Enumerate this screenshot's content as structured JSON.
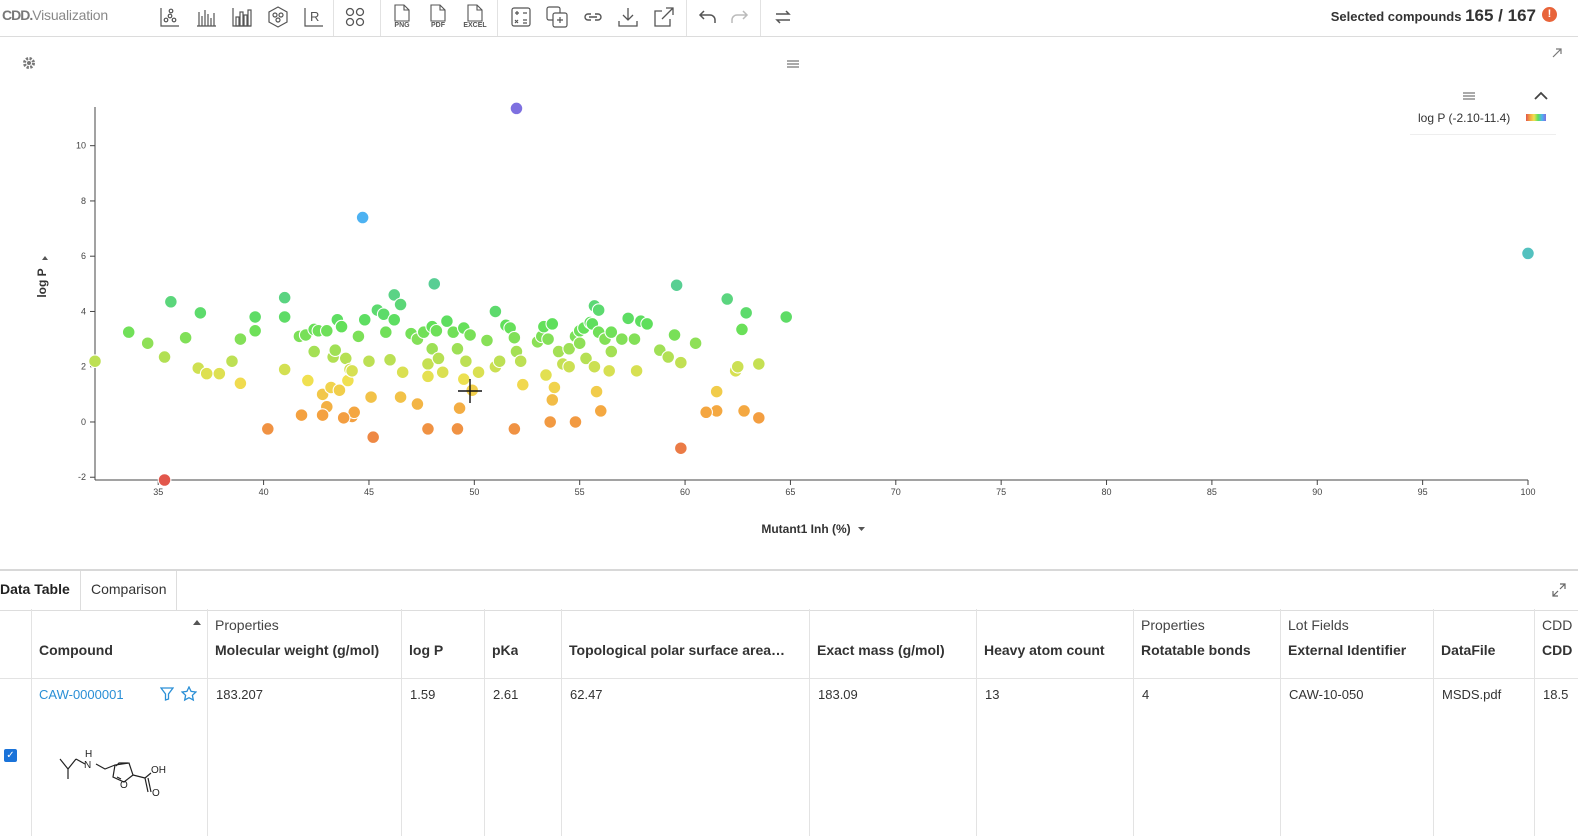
{
  "app": {
    "logo_mark": "CDD.",
    "logo_text": "Visualization",
    "selected_label": "Selected compounds",
    "selected_count": "165 / 167",
    "alert_symbol": "!"
  },
  "toolbar": {
    "export": [
      {
        "label": "PNG",
        "icon": "file-png-icon"
      },
      {
        "label": "PDF",
        "icon": "file-pdf-icon"
      },
      {
        "label": "EXCEL",
        "icon": "file-excel-icon"
      }
    ],
    "icons": [
      "scatter-plot-icon",
      "bar-chart-icon",
      "histogram-icon",
      "molecule-view-icon",
      "r-script-icon",
      "cluster-icon",
      "calculator-icon",
      "add-copy-icon",
      "link-icon",
      "download-icon",
      "external-open-icon",
      "undo-icon",
      "redo-icon",
      "refresh-icon"
    ]
  },
  "plot": {
    "legend_label": "log P (-2.10-11.4)",
    "legend_colors": [
      "#e2574c",
      "#f4a340",
      "#f0e050",
      "#5fe05a",
      "#4db2f2",
      "#7f6fe0"
    ]
  },
  "chart_data": {
    "type": "scatter",
    "xlabel": "Mutant1 Inh (%)",
    "ylabel": "log P",
    "xlim": [
      32,
      100
    ],
    "ylim": [
      -2.1,
      11.4
    ],
    "xticks": [
      35,
      40,
      45,
      50,
      55,
      60,
      65,
      70,
      75,
      80,
      85,
      90,
      95,
      100
    ],
    "yticks": [
      -2,
      0,
      2,
      4,
      6,
      8,
      10
    ],
    "color_by": "log P",
    "points": [
      [
        32,
        2.2
      ],
      [
        33.6,
        3.25
      ],
      [
        34.5,
        2.85
      ],
      [
        35.3,
        2.35
      ],
      [
        35.6,
        4.35
      ],
      [
        36.3,
        3.05
      ],
      [
        37.0,
        3.95
      ],
      [
        36.9,
        1.95
      ],
      [
        37.3,
        1.75
      ],
      [
        37.9,
        1.75
      ],
      [
        38.5,
        2.2
      ],
      [
        38.9,
        1.4
      ],
      [
        38.9,
        3.0
      ],
      [
        39.6,
        3.3
      ],
      [
        39.6,
        3.8
      ],
      [
        41.0,
        1.9
      ],
      [
        41.0,
        3.8
      ],
      [
        41.0,
        4.5
      ],
      [
        41.7,
        3.1
      ],
      [
        42.0,
        3.15
      ],
      [
        42.4,
        2.55
      ],
      [
        42.4,
        3.35
      ],
      [
        42.6,
        3.3
      ],
      [
        43.0,
        3.3
      ],
      [
        42.8,
        1.0
      ],
      [
        43.2,
        1.25
      ],
      [
        42.1,
        1.5
      ],
      [
        43.3,
        2.35
      ],
      [
        43.4,
        2.6
      ],
      [
        43.5,
        3.7
      ],
      [
        43.7,
        3.45
      ],
      [
        43.9,
        2.3
      ],
      [
        43.6,
        1.15
      ],
      [
        44.0,
        1.5
      ],
      [
        44.1,
        1.9
      ],
      [
        44.2,
        1.85
      ],
      [
        44.5,
        3.1
      ],
      [
        44.8,
        3.7
      ],
      [
        45.0,
        2.2
      ],
      [
        44.2,
        0.2
      ],
      [
        44.3,
        0.35
      ],
      [
        45.4,
        4.05
      ],
      [
        45.7,
        3.9
      ],
      [
        45.8,
        3.25
      ],
      [
        46.2,
        4.6
      ],
      [
        46.2,
        3.7
      ],
      [
        46.0,
        2.25
      ],
      [
        46.5,
        4.25
      ],
      [
        46.6,
        1.8
      ],
      [
        47.0,
        3.2
      ],
      [
        47.3,
        3.0
      ],
      [
        47.6,
        3.25
      ],
      [
        47.8,
        2.1
      ],
      [
        48.0,
        2.65
      ],
      [
        48.0,
        3.45
      ],
      [
        47.8,
        1.65
      ],
      [
        48.1,
        5.0
      ],
      [
        48.3,
        2.3
      ],
      [
        48.2,
        3.3
      ],
      [
        48.5,
        1.8
      ],
      [
        48.7,
        3.65
      ],
      [
        49.0,
        3.25
      ],
      [
        49.2,
        2.65
      ],
      [
        49.5,
        3.4
      ],
      [
        49.6,
        2.2
      ],
      [
        49.8,
        3.15
      ],
      [
        49.5,
        1.55
      ],
      [
        49.9,
        1.15
      ],
      [
        50.2,
        1.8
      ],
      [
        50.6,
        2.95
      ],
      [
        51.0,
        4.0
      ],
      [
        51.0,
        2.0
      ],
      [
        51.2,
        2.2
      ],
      [
        51.5,
        3.5
      ],
      [
        51.7,
        3.4
      ],
      [
        51.9,
        3.05
      ],
      [
        52.0,
        2.55
      ],
      [
        52.2,
        2.2
      ],
      [
        52.3,
        1.35
      ],
      [
        53.0,
        2.9
      ],
      [
        53.2,
        3.1
      ],
      [
        53.3,
        3.45
      ],
      [
        53.5,
        3.0
      ],
      [
        53.7,
        3.55
      ],
      [
        53.4,
        1.7
      ],
      [
        53.8,
        1.25
      ],
      [
        53.7,
        0.8
      ],
      [
        54.0,
        2.55
      ],
      [
        54.2,
        2.1
      ],
      [
        54.5,
        2.0
      ],
      [
        54.5,
        2.65
      ],
      [
        54.8,
        3.1
      ],
      [
        55.0,
        3.3
      ],
      [
        55.2,
        3.4
      ],
      [
        55.5,
        3.6
      ],
      [
        55.6,
        3.55
      ],
      [
        55.7,
        4.2
      ],
      [
        55.9,
        4.05
      ],
      [
        55.3,
        2.3
      ],
      [
        55.7,
        2.0
      ],
      [
        55.8,
        1.1
      ],
      [
        55.0,
        2.85
      ],
      [
        55.9,
        3.25
      ],
      [
        56.2,
        3.0
      ],
      [
        56.4,
        1.85
      ],
      [
        56.5,
        2.55
      ],
      [
        56.5,
        3.25
      ],
      [
        57.0,
        3.0
      ],
      [
        57.3,
        3.75
      ],
      [
        57.7,
        1.85
      ],
      [
        57.6,
        3.0
      ],
      [
        57.9,
        3.65
      ],
      [
        58.2,
        3.55
      ],
      [
        58.8,
        2.6
      ],
      [
        59.2,
        2.35
      ],
      [
        59.5,
        3.15
      ],
      [
        59.6,
        4.95
      ],
      [
        59.8,
        2.15
      ],
      [
        60.5,
        2.85
      ],
      [
        61.5,
        1.1
      ],
      [
        62.0,
        4.45
      ],
      [
        62.4,
        1.85
      ],
      [
        62.5,
        2.0
      ],
      [
        62.7,
        3.35
      ],
      [
        62.9,
        3.95
      ],
      [
        63.5,
        2.1
      ],
      [
        64.8,
        3.8
      ],
      [
        61.5,
        0.4
      ],
      [
        62.8,
        0.4
      ],
      [
        56.0,
        0.4
      ],
      [
        54.8,
        0.0
      ],
      [
        53.6,
        0.0
      ],
      [
        51.9,
        -0.25
      ],
      [
        49.2,
        -0.25
      ],
      [
        47.8,
        -0.25
      ],
      [
        40.2,
        -0.25
      ],
      [
        35.3,
        -2.1
      ],
      [
        45.2,
        -0.55
      ],
      [
        44.7,
        7.4
      ],
      [
        52.0,
        11.35
      ],
      [
        59.8,
        -0.95
      ],
      [
        63.5,
        0.15
      ],
      [
        61.0,
        0.35
      ],
      [
        49.3,
        0.5
      ],
      [
        47.3,
        0.65
      ],
      [
        46.5,
        0.9
      ],
      [
        45.1,
        0.9
      ],
      [
        43.0,
        0.55
      ],
      [
        42.8,
        0.25
      ],
      [
        41.8,
        0.25
      ],
      [
        43.8,
        0.15
      ],
      [
        100.0,
        6.1
      ]
    ]
  },
  "bottom": {
    "tabs": [
      "Data Table",
      "Comparison"
    ],
    "groups": {
      "properties": "Properties",
      "properties2": "Properties",
      "lot_fields": "Lot Fields",
      "cdd": "CDD"
    },
    "columns": {
      "compound": "Compound",
      "mw": "Molecular weight (g/mol)",
      "logp": "log P",
      "pka": "pKa",
      "tpsa": "Topological polar surface area…",
      "exact": "Exact mass (g/mol)",
      "heavy": "Heavy atom count",
      "rot": "Rotatable bonds",
      "extid": "External Identifier",
      "datafile": "DataFile",
      "cdd2": "CDD"
    },
    "row": {
      "compound_id": "CAW-0000001",
      "mw": "183.207",
      "logp": "1.59",
      "pka": "2.61",
      "tpsa": "62.47",
      "exact": "183.09",
      "heavy": "13",
      "rot": "4",
      "extid": "CAW-10-050",
      "datafile": "MSDS.pdf",
      "cdd2": "18.5",
      "struct_h": "H",
      "struct_n": "N",
      "struct_o": "O",
      "struct_oh": "OH",
      "struct_o2": "O"
    }
  }
}
